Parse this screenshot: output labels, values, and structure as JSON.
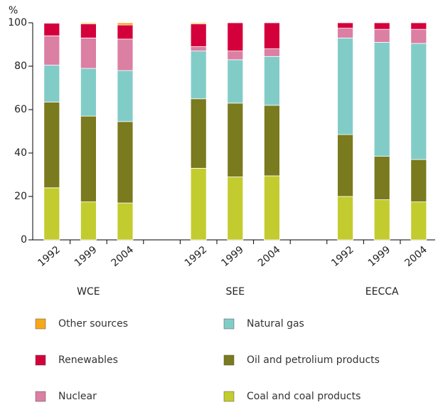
{
  "chart_data": {
    "type": "stacked_bar",
    "y_label": "%",
    "categories": [
      "1992",
      "1999",
      "2004",
      null,
      "1992",
      "1999",
      "2004",
      null,
      "1992",
      "1999",
      "2004"
    ],
    "groups": [
      "WCE",
      "SEE",
      "EECCA"
    ],
    "ylim": [
      0,
      100
    ],
    "yticks": [
      0,
      20,
      40,
      60,
      80,
      100
    ],
    "series": [
      {
        "name": "Coal and coal products",
        "color": "#c3cc2e",
        "values": [
          24,
          17.5,
          17,
          null,
          33,
          29,
          29.5,
          null,
          20,
          18.5,
          17.5
        ]
      },
      {
        "name": "Oil and petrolium products",
        "color": "#7a7a1e",
        "values": [
          39.5,
          39.5,
          37.5,
          null,
          32,
          34,
          32.5,
          null,
          28.5,
          20,
          19.5
        ]
      },
      {
        "name": "Natural gas",
        "color": "#82ccc8",
        "values": [
          17,
          22,
          23.5,
          null,
          22,
          20,
          22.5,
          null,
          44.5,
          52.5,
          53.5
        ]
      },
      {
        "name": "Nuclear",
        "color": "#db7fa3",
        "values": [
          13.5,
          14,
          14.5,
          null,
          2,
          4,
          3.5,
          null,
          4.5,
          6,
          6.5
        ]
      },
      {
        "name": "Renewables",
        "color": "#d4003c",
        "values": [
          5.8,
          6.5,
          6.5,
          null,
          10.5,
          13,
          12,
          null,
          2.5,
          3,
          3
        ]
      },
      {
        "name": "Other sources",
        "color": "#f7a818",
        "values": [
          0.2,
          0.5,
          1,
          null,
          0.5,
          0,
          0,
          null,
          0,
          0,
          0
        ]
      }
    ]
  }
}
